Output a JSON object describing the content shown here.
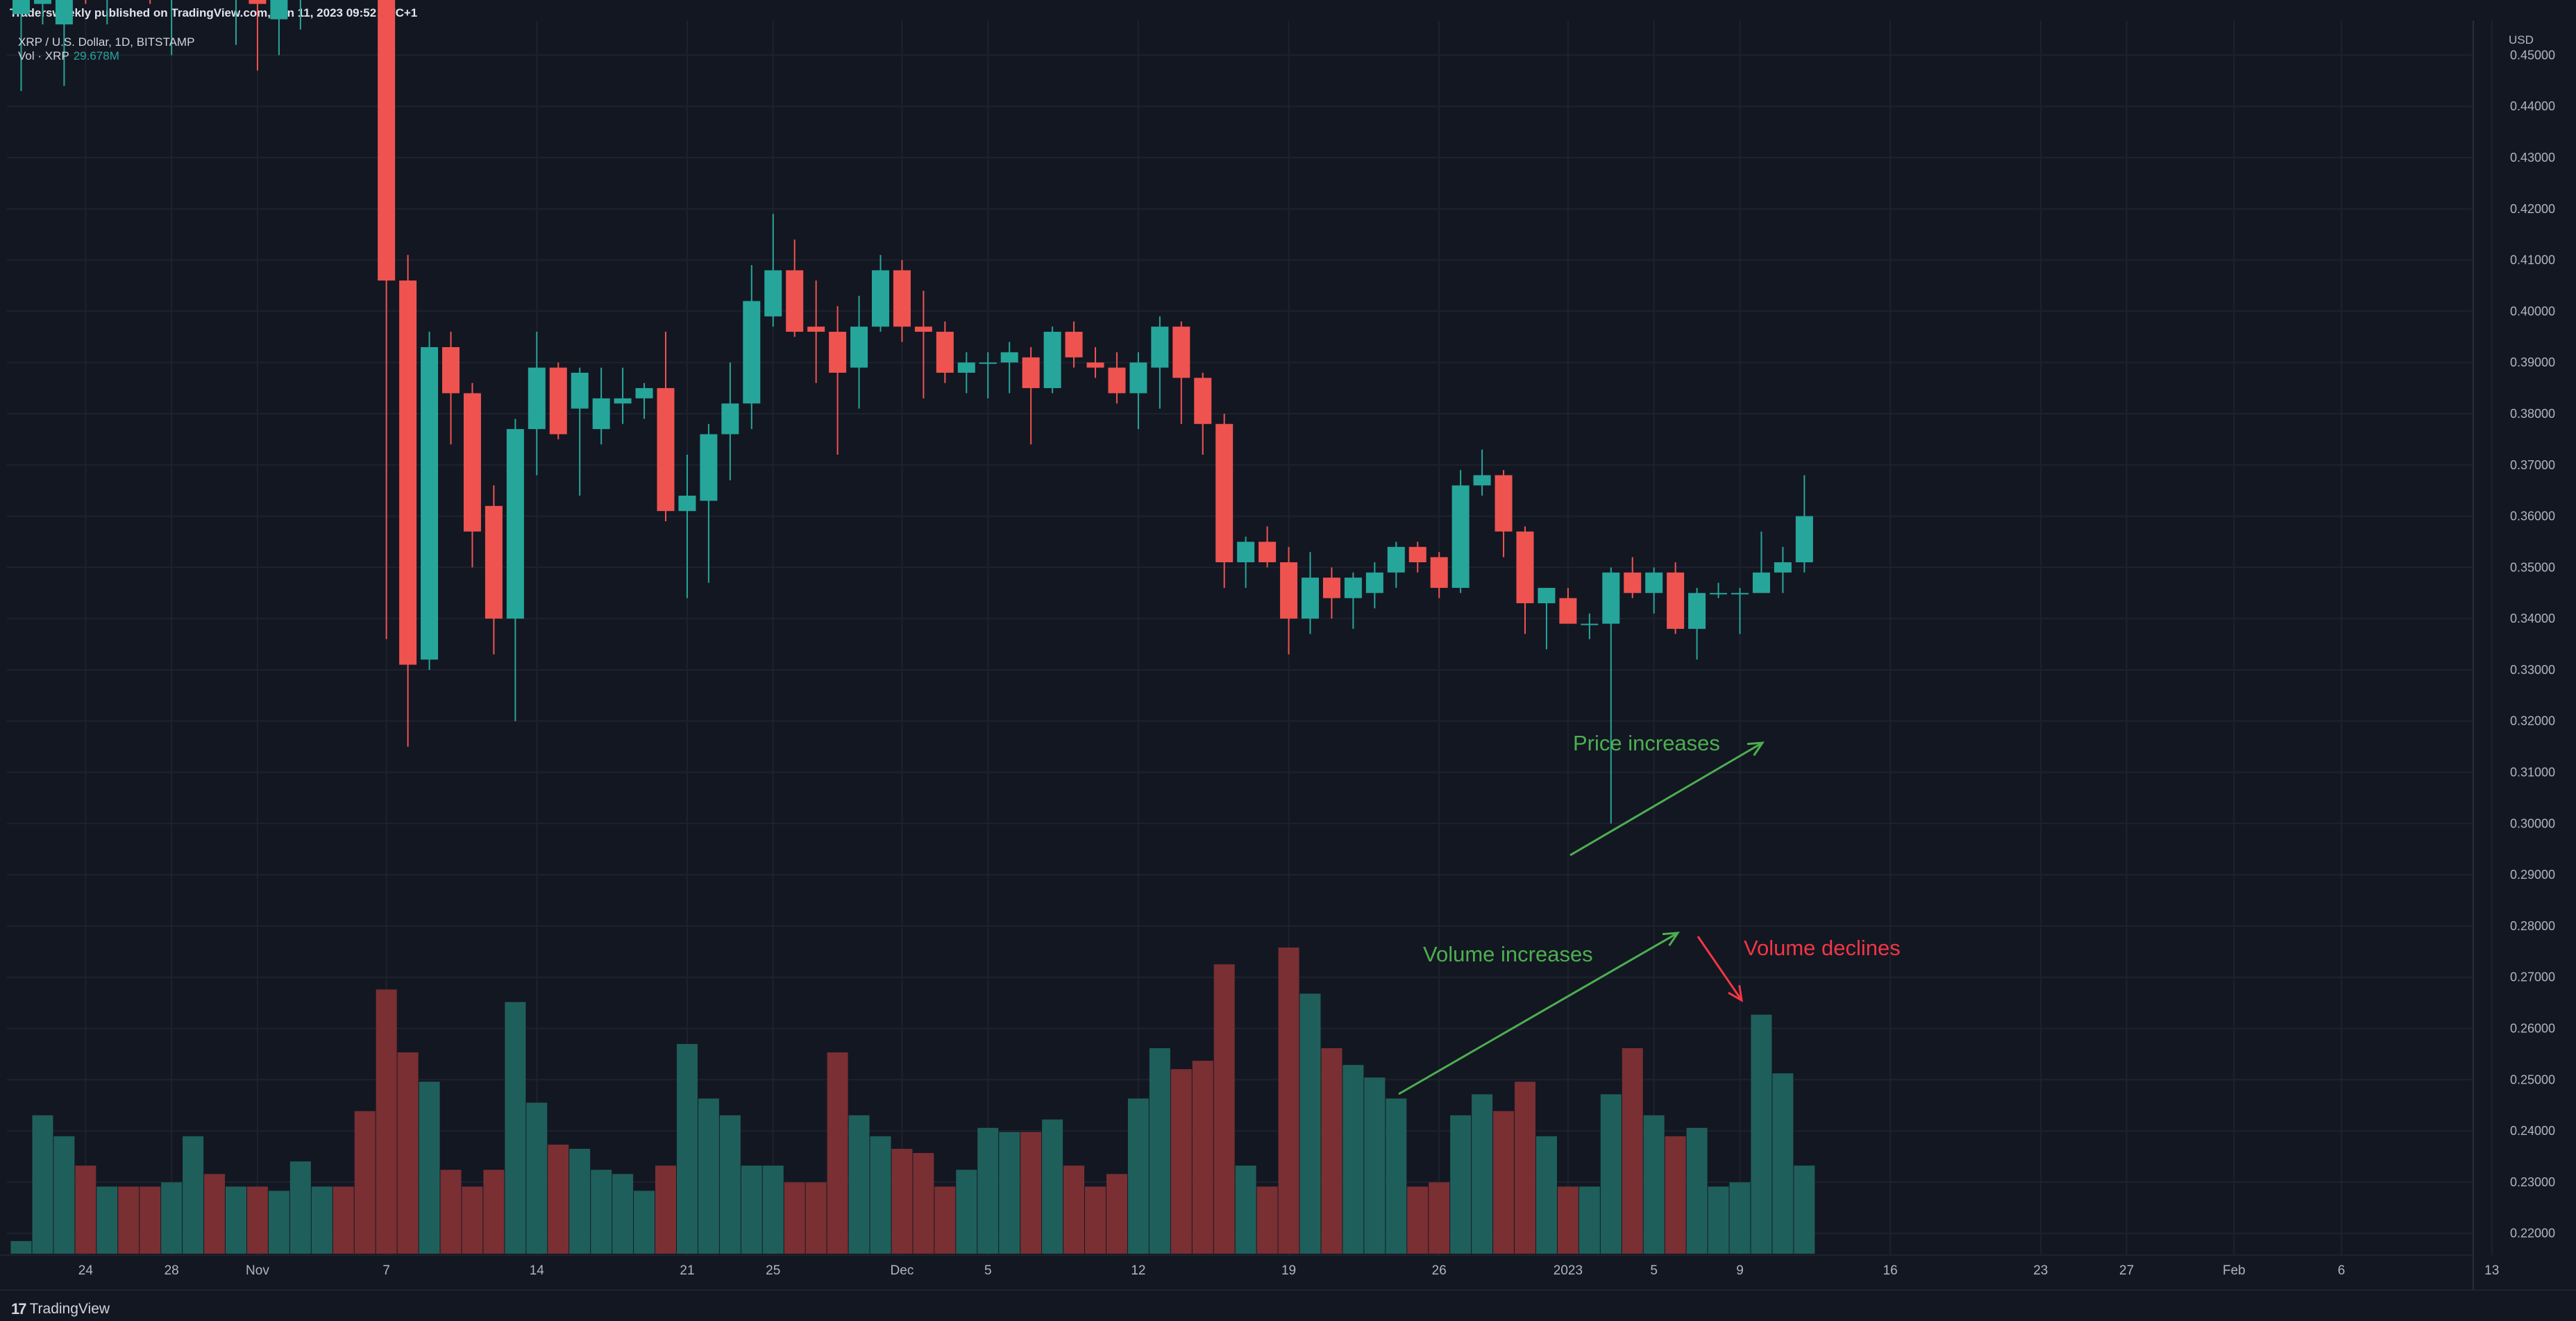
{
  "header": {
    "publish_line": "Tradersweekly published on TradingView.com, Jan 11, 2023 09:52 UTC+1",
    "symbol_line": "XRP / U.S. Dollar, 1D, BITSTAMP",
    "vol_label": "Vol · XRP",
    "vol_value": "29.678M"
  },
  "footer": {
    "brand": "TradingView"
  },
  "colors": {
    "background": "#131722",
    "grid": "#1e222d",
    "up": "#26a69a",
    "down": "#ef5350",
    "volume_up": "#1f5f5b",
    "volume_down": "#7a2f33",
    "annotation_green": "#4caf50",
    "annotation_red": "#f23645"
  },
  "annotations": {
    "price_increases": "Price increases",
    "volume_increases": "Volume increases",
    "volume_declines": "Volume declines"
  },
  "chart_data": {
    "type": "candlestick",
    "title": "XRP / U.S. Dollar, 1D, BITSTAMP",
    "price_axis": {
      "unit": "USD",
      "range": [
        0.2125,
        0.4567
      ],
      "ticks": [
        "0.45000",
        "0.44000",
        "0.43000",
        "0.42000",
        "0.41000",
        "0.40000",
        "0.39000",
        "0.38000",
        "0.37000",
        "0.36000",
        "0.35000",
        "0.34000",
        "0.33000",
        "0.32000",
        "0.31000",
        "0.30000",
        "0.29000",
        "0.28000",
        "0.27000",
        "0.26000",
        "0.25000",
        "0.24000",
        "0.23000",
        "0.22000"
      ]
    },
    "time_axis": {
      "ticks": [
        "24",
        "28",
        "Nov",
        "7",
        "14",
        "21",
        "25",
        "Dec",
        "5",
        "12",
        "19",
        "26",
        "2023",
        "5",
        "9",
        "16",
        "23",
        "27",
        "Feb",
        "6",
        "13"
      ],
      "first_bar_date": "2022-10-21"
    },
    "grid": true,
    "volume_max": 73,
    "candles": [
      {
        "date": "2022-10-21",
        "o": 0.458,
        "h": 0.462,
        "l": 0.443,
        "c": 0.463,
        "v": 3
      },
      {
        "date": "2022-10-22",
        "o": 0.46,
        "h": 0.463,
        "l": 0.456,
        "c": 0.461,
        "v": 33
      },
      {
        "date": "2022-10-23",
        "o": 0.456,
        "h": 0.464,
        "l": 0.444,
        "c": 0.463,
        "v": 28
      },
      {
        "date": "2022-10-24",
        "o": 0.466,
        "h": 0.468,
        "l": 0.46,
        "c": 0.462,
        "v": 21
      },
      {
        "date": "2022-10-25",
        "o": 0.462,
        "h": 0.47,
        "l": 0.456,
        "c": 0.468,
        "v": 16
      },
      {
        "date": "2022-10-26",
        "o": 0.47,
        "h": 0.476,
        "l": 0.462,
        "c": 0.466,
        "v": 16
      },
      {
        "date": "2022-10-27",
        "o": 0.466,
        "h": 0.472,
        "l": 0.46,
        "c": 0.464,
        "v": 16
      },
      {
        "date": "2022-10-28",
        "o": 0.463,
        "h": 0.47,
        "l": 0.45,
        "c": 0.466,
        "v": 17
      },
      {
        "date": "2022-10-29",
        "o": 0.466,
        "h": 0.474,
        "l": 0.462,
        "c": 0.47,
        "v": 28
      },
      {
        "date": "2022-10-30",
        "o": 0.47,
        "h": 0.474,
        "l": 0.462,
        "c": 0.462,
        "v": 19
      },
      {
        "date": "2022-10-31",
        "o": 0.462,
        "h": 0.468,
        "l": 0.452,
        "c": 0.466,
        "v": 16
      },
      {
        "date": "2022-11-01",
        "o": 0.468,
        "h": 0.472,
        "l": 0.447,
        "c": 0.46,
        "v": 16
      },
      {
        "date": "2022-11-02",
        "o": 0.457,
        "h": 0.466,
        "l": 0.45,
        "c": 0.462,
        "v": 15
      },
      {
        "date": "2022-11-03",
        "o": 0.461,
        "h": 0.468,
        "l": 0.455,
        "c": 0.465,
        "v": 22
      },
      {
        "date": "2022-11-04",
        "o": 0.47,
        "h": 0.48,
        "l": 0.462,
        "c": 0.478,
        "v": 16
      },
      {
        "date": "2022-11-05",
        "o": 0.478,
        "h": 0.484,
        "l": 0.47,
        "c": 0.476,
        "v": 16
      },
      {
        "date": "2022-11-06",
        "o": 0.478,
        "h": 0.486,
        "l": 0.466,
        "c": 0.472,
        "v": 34
      },
      {
        "date": "2022-11-07",
        "o": 0.472,
        "h": 0.478,
        "l": 0.336,
        "c": 0.406,
        "v": 63
      },
      {
        "date": "2022-11-08",
        "o": 0.406,
        "h": 0.411,
        "l": 0.315,
        "c": 0.331,
        "v": 48
      },
      {
        "date": "2022-11-09",
        "o": 0.332,
        "h": 0.396,
        "l": 0.33,
        "c": 0.393,
        "v": 41
      },
      {
        "date": "2022-11-10",
        "o": 0.393,
        "h": 0.396,
        "l": 0.374,
        "c": 0.384,
        "v": 20
      },
      {
        "date": "2022-11-11",
        "o": 0.384,
        "h": 0.386,
        "l": 0.35,
        "c": 0.357,
        "v": 16
      },
      {
        "date": "2022-11-12",
        "o": 0.362,
        "h": 0.366,
        "l": 0.333,
        "c": 0.34,
        "v": 20
      },
      {
        "date": "2022-11-13",
        "o": 0.34,
        "h": 0.379,
        "l": 0.32,
        "c": 0.377,
        "v": 60
      },
      {
        "date": "2022-11-14",
        "o": 0.377,
        "h": 0.396,
        "l": 0.368,
        "c": 0.389,
        "v": 36
      },
      {
        "date": "2022-11-15",
        "o": 0.389,
        "h": 0.39,
        "l": 0.375,
        "c": 0.376,
        "v": 26
      },
      {
        "date": "2022-11-16",
        "o": 0.381,
        "h": 0.389,
        "l": 0.364,
        "c": 0.388,
        "v": 25
      },
      {
        "date": "2022-11-17",
        "o": 0.377,
        "h": 0.389,
        "l": 0.374,
        "c": 0.383,
        "v": 20
      },
      {
        "date": "2022-11-18",
        "o": 0.382,
        "h": 0.389,
        "l": 0.378,
        "c": 0.383,
        "v": 19
      },
      {
        "date": "2022-11-19",
        "o": 0.383,
        "h": 0.386,
        "l": 0.379,
        "c": 0.385,
        "v": 15
      },
      {
        "date": "2022-11-20",
        "o": 0.385,
        "h": 0.396,
        "l": 0.359,
        "c": 0.361,
        "v": 21
      },
      {
        "date": "2022-11-21",
        "o": 0.361,
        "h": 0.372,
        "l": 0.344,
        "c": 0.364,
        "v": 50
      },
      {
        "date": "2022-11-22",
        "o": 0.363,
        "h": 0.378,
        "l": 0.347,
        "c": 0.376,
        "v": 37
      },
      {
        "date": "2022-11-23",
        "o": 0.376,
        "h": 0.39,
        "l": 0.367,
        "c": 0.382,
        "v": 33
      },
      {
        "date": "2022-11-24",
        "o": 0.382,
        "h": 0.409,
        "l": 0.377,
        "c": 0.402,
        "v": 21
      },
      {
        "date": "2022-11-25",
        "o": 0.399,
        "h": 0.419,
        "l": 0.397,
        "c": 0.408,
        "v": 21
      },
      {
        "date": "2022-11-26",
        "o": 0.408,
        "h": 0.414,
        "l": 0.395,
        "c": 0.396,
        "v": 17
      },
      {
        "date": "2022-11-27",
        "o": 0.397,
        "h": 0.406,
        "l": 0.386,
        "c": 0.396,
        "v": 17
      },
      {
        "date": "2022-11-28",
        "o": 0.396,
        "h": 0.401,
        "l": 0.372,
        "c": 0.388,
        "v": 48
      },
      {
        "date": "2022-11-29",
        "o": 0.389,
        "h": 0.403,
        "l": 0.381,
        "c": 0.397,
        "v": 33
      },
      {
        "date": "2022-11-30",
        "o": 0.397,
        "h": 0.411,
        "l": 0.396,
        "c": 0.408,
        "v": 28
      },
      {
        "date": "2022-12-01",
        "o": 0.408,
        "h": 0.41,
        "l": 0.394,
        "c": 0.397,
        "v": 25
      },
      {
        "date": "2022-12-02",
        "o": 0.397,
        "h": 0.404,
        "l": 0.383,
        "c": 0.396,
        "v": 24
      },
      {
        "date": "2022-12-03",
        "o": 0.396,
        "h": 0.398,
        "l": 0.386,
        "c": 0.388,
        "v": 16
      },
      {
        "date": "2022-12-04",
        "o": 0.388,
        "h": 0.392,
        "l": 0.384,
        "c": 0.39,
        "v": 20
      },
      {
        "date": "2022-12-05",
        "o": 0.39,
        "h": 0.392,
        "l": 0.383,
        "c": 0.39,
        "v": 30
      },
      {
        "date": "2022-12-06",
        "o": 0.39,
        "h": 0.394,
        "l": 0.384,
        "c": 0.392,
        "v": 29
      },
      {
        "date": "2022-12-07",
        "o": 0.391,
        "h": 0.393,
        "l": 0.374,
        "c": 0.385,
        "v": 29
      },
      {
        "date": "2022-12-08",
        "o": 0.385,
        "h": 0.397,
        "l": 0.384,
        "c": 0.396,
        "v": 32
      },
      {
        "date": "2022-12-09",
        "o": 0.396,
        "h": 0.398,
        "l": 0.389,
        "c": 0.391,
        "v": 21
      },
      {
        "date": "2022-12-10",
        "o": 0.39,
        "h": 0.393,
        "l": 0.387,
        "c": 0.389,
        "v": 16
      },
      {
        "date": "2022-12-11",
        "o": 0.389,
        "h": 0.392,
        "l": 0.382,
        "c": 0.384,
        "v": 19
      },
      {
        "date": "2022-12-12",
        "o": 0.384,
        "h": 0.392,
        "l": 0.377,
        "c": 0.39,
        "v": 37
      },
      {
        "date": "2022-12-13",
        "o": 0.389,
        "h": 0.399,
        "l": 0.381,
        "c": 0.397,
        "v": 49
      },
      {
        "date": "2022-12-14",
        "o": 0.397,
        "h": 0.398,
        "l": 0.378,
        "c": 0.387,
        "v": 44
      },
      {
        "date": "2022-12-15",
        "o": 0.387,
        "h": 0.388,
        "l": 0.372,
        "c": 0.378,
        "v": 46
      },
      {
        "date": "2022-12-16",
        "o": 0.378,
        "h": 0.38,
        "l": 0.346,
        "c": 0.351,
        "v": 69
      },
      {
        "date": "2022-12-17",
        "o": 0.351,
        "h": 0.356,
        "l": 0.346,
        "c": 0.355,
        "v": 21
      },
      {
        "date": "2022-12-18",
        "o": 0.355,
        "h": 0.358,
        "l": 0.35,
        "c": 0.351,
        "v": 16
      },
      {
        "date": "2022-12-19",
        "o": 0.351,
        "h": 0.354,
        "l": 0.333,
        "c": 0.34,
        "v": 73
      },
      {
        "date": "2022-12-20",
        "o": 0.34,
        "h": 0.353,
        "l": 0.337,
        "c": 0.348,
        "v": 62
      },
      {
        "date": "2022-12-21",
        "o": 0.348,
        "h": 0.35,
        "l": 0.34,
        "c": 0.344,
        "v": 49
      },
      {
        "date": "2022-12-22",
        "o": 0.344,
        "h": 0.349,
        "l": 0.338,
        "c": 0.348,
        "v": 45
      },
      {
        "date": "2022-12-23",
        "o": 0.345,
        "h": 0.351,
        "l": 0.342,
        "c": 0.349,
        "v": 42
      },
      {
        "date": "2022-12-24",
        "o": 0.349,
        "h": 0.355,
        "l": 0.346,
        "c": 0.354,
        "v": 37
      },
      {
        "date": "2022-12-25",
        "o": 0.354,
        "h": 0.355,
        "l": 0.349,
        "c": 0.351,
        "v": 16
      },
      {
        "date": "2022-12-26",
        "o": 0.352,
        "h": 0.353,
        "l": 0.344,
        "c": 0.346,
        "v": 17
      },
      {
        "date": "2022-12-27",
        "o": 0.346,
        "h": 0.369,
        "l": 0.345,
        "c": 0.366,
        "v": 33
      },
      {
        "date": "2022-12-28",
        "o": 0.366,
        "h": 0.373,
        "l": 0.364,
        "c": 0.368,
        "v": 38
      },
      {
        "date": "2022-12-29",
        "o": 0.368,
        "h": 0.369,
        "l": 0.352,
        "c": 0.357,
        "v": 34
      },
      {
        "date": "2022-12-30",
        "o": 0.357,
        "h": 0.358,
        "l": 0.337,
        "c": 0.343,
        "v": 41
      },
      {
        "date": "2022-12-31",
        "o": 0.343,
        "h": 0.346,
        "l": 0.334,
        "c": 0.346,
        "v": 28
      },
      {
        "date": "2023-01-01",
        "o": 0.344,
        "h": 0.346,
        "l": 0.339,
        "c": 0.339,
        "v": 16
      },
      {
        "date": "2023-01-02",
        "o": 0.339,
        "h": 0.341,
        "l": 0.336,
        "c": 0.339,
        "v": 16
      },
      {
        "date": "2023-01-03",
        "o": 0.339,
        "h": 0.35,
        "l": 0.3,
        "c": 0.349,
        "v": 38
      },
      {
        "date": "2023-01-04",
        "o": 0.349,
        "h": 0.352,
        "l": 0.344,
        "c": 0.345,
        "v": 49
      },
      {
        "date": "2023-01-05",
        "o": 0.345,
        "h": 0.35,
        "l": 0.341,
        "c": 0.349,
        "v": 33
      },
      {
        "date": "2023-01-06",
        "o": 0.349,
        "h": 0.351,
        "l": 0.337,
        "c": 0.338,
        "v": 28
      },
      {
        "date": "2023-01-07",
        "o": 0.338,
        "h": 0.346,
        "l": 0.332,
        "c": 0.345,
        "v": 30
      },
      {
        "date": "2023-01-08",
        "o": 0.345,
        "h": 0.347,
        "l": 0.344,
        "c": 0.345,
        "v": 16
      },
      {
        "date": "2023-01-09",
        "o": 0.345,
        "h": 0.346,
        "l": 0.337,
        "c": 0.345,
        "v": 17
      },
      {
        "date": "2023-01-10",
        "o": 0.345,
        "h": 0.357,
        "l": 0.345,
        "c": 0.349,
        "v": 57
      },
      {
        "date": "2023-01-11",
        "o": 0.349,
        "h": 0.354,
        "l": 0.345,
        "c": 0.351,
        "v": 43
      },
      {
        "date": "2023-01-12",
        "o": 0.351,
        "h": 0.368,
        "l": 0.349,
        "c": 0.36,
        "v": 21
      }
    ]
  }
}
